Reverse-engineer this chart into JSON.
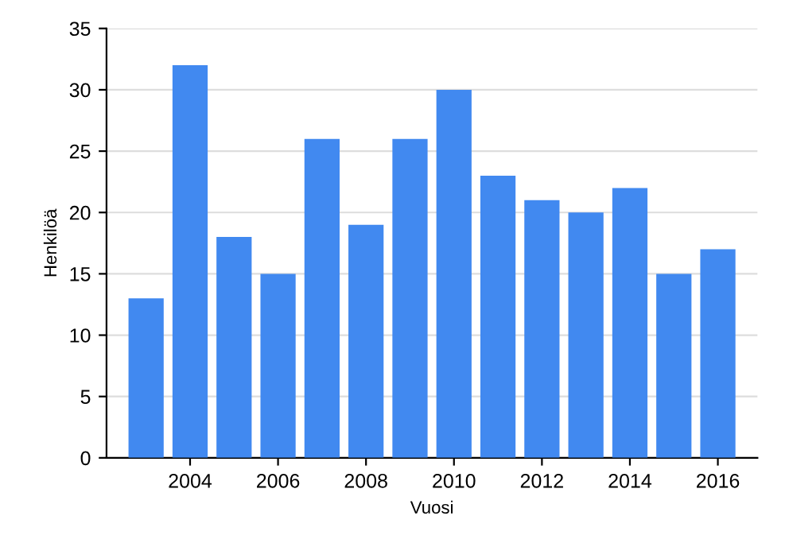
{
  "chart_data": {
    "type": "bar",
    "xlabel": "Vuosi",
    "ylabel": "Henkilöä",
    "x": [
      2003,
      2004,
      2005,
      2006,
      2007,
      2008,
      2009,
      2010,
      2011,
      2012,
      2013,
      2014,
      2015,
      2016
    ],
    "series": [
      {
        "color": "#4189f0",
        "values": [
          13,
          32,
          18,
          15,
          26,
          19,
          26,
          30,
          23,
          21,
          20,
          22,
          15,
          17
        ]
      }
    ],
    "xlim": [
      2002.1,
      2016.9
    ],
    "xticks": [
      2004,
      2006,
      2008,
      2010,
      2012,
      2014,
      2016
    ],
    "ylim": [
      0,
      35
    ],
    "yticks": [
      0,
      5,
      10,
      15,
      20,
      25,
      30,
      35
    ],
    "grid": "y",
    "legend": false
  }
}
